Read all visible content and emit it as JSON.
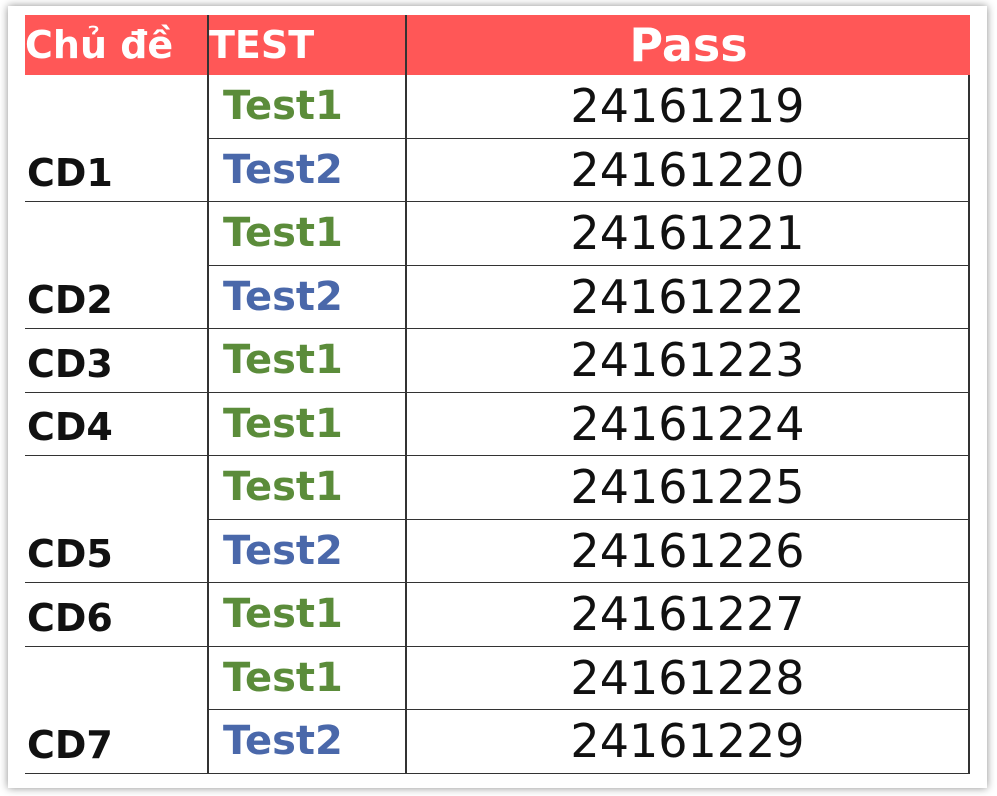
{
  "header": {
    "topic": "Chủ đề",
    "test": "TEST",
    "pass": "Pass"
  },
  "groups": [
    {
      "label": "CD1",
      "tests": [
        {
          "name": "Test1",
          "pass": 24161219
        },
        {
          "name": "Test2",
          "pass": 24161220
        }
      ]
    },
    {
      "label": "CD2",
      "tests": [
        {
          "name": "Test1",
          "pass": 24161221
        },
        {
          "name": "Test2",
          "pass": 24161222
        }
      ]
    },
    {
      "label": "CD3",
      "tests": [
        {
          "name": "Test1",
          "pass": 24161223
        }
      ]
    },
    {
      "label": "CD4",
      "tests": [
        {
          "name": "Test1",
          "pass": 24161224
        }
      ]
    },
    {
      "label": "CD5",
      "tests": [
        {
          "name": "Test1",
          "pass": 24161225
        },
        {
          "name": "Test2",
          "pass": 24161226
        }
      ]
    },
    {
      "label": "CD6",
      "tests": [
        {
          "name": "Test1",
          "pass": 24161227
        }
      ]
    },
    {
      "label": "CD7",
      "tests": [
        {
          "name": "Test1",
          "pass": 24161228
        },
        {
          "name": "Test2",
          "pass": 24161229
        }
      ]
    }
  ]
}
